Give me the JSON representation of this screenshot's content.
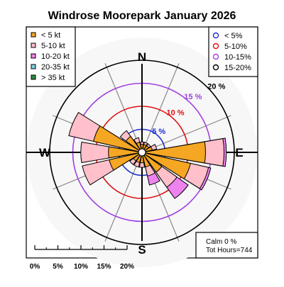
{
  "chart_data": {
    "type": "windrose",
    "title": "Windrose  Moorepark January 2026",
    "compass": {
      "north": "N",
      "south": "S",
      "east": "E",
      "west": "W"
    },
    "speed_legend": [
      {
        "label": "< 5  kt",
        "color": "#f5a623"
      },
      {
        "label": "5-10 kt",
        "color": "#ffc0cb"
      },
      {
        "label": "10-20 kt",
        "color": "#ee82ee"
      },
      {
        "label": "20-35 kt",
        "color": "#7fd0e0"
      },
      {
        "label": "> 35 kt",
        "color": "#2e8b3e"
      }
    ],
    "ring_legend": [
      {
        "label": "< 5%",
        "color": "#1f2fd0"
      },
      {
        "label": "5-10%",
        "color": "#e01010"
      },
      {
        "label": "10-15%",
        "color": "#a040e0"
      },
      {
        "label": "15-20%",
        "color": "#000000"
      }
    ],
    "rings": [
      {
        "pct": 5,
        "label": "5 %",
        "color": "#1f2fd0"
      },
      {
        "pct": 10,
        "label": "10 %",
        "color": "#e01010"
      },
      {
        "pct": 15,
        "label": "15 %",
        "color": "#a040e0"
      },
      {
        "pct": 20,
        "label": "20 %",
        "color": "#000000"
      }
    ],
    "sector_width_deg": 22.5,
    "sectors": [
      {
        "direction": "N",
        "bands": [
          1.0,
          0.5,
          0.0,
          0,
          0
        ]
      },
      {
        "direction": "NNE",
        "bands": [
          1.0,
          0.5,
          0.0,
          0,
          0
        ]
      },
      {
        "direction": "NE",
        "bands": [
          1.0,
          0.5,
          0.0,
          0,
          0
        ]
      },
      {
        "direction": "ENE",
        "bands": [
          1.5,
          1.0,
          0.0,
          0,
          0
        ]
      },
      {
        "direction": "E",
        "bands": [
          13.0,
          4.0,
          0.5,
          0,
          0
        ]
      },
      {
        "direction": "ESE",
        "bands": [
          10.0,
          4.0,
          0.5,
          0,
          0
        ]
      },
      {
        "direction": "SE",
        "bands": [
          4.5,
          4.0,
          3.0,
          0,
          0
        ]
      },
      {
        "direction": "SSE",
        "bands": [
          2.5,
          2.0,
          2.0,
          0,
          0
        ]
      },
      {
        "direction": "S",
        "bands": [
          1.5,
          1.0,
          0.0,
          0,
          0
        ]
      },
      {
        "direction": "SSW",
        "bands": [
          1.5,
          1.0,
          0.0,
          0,
          0
        ]
      },
      {
        "direction": "SW",
        "bands": [
          1.5,
          1.0,
          0.0,
          0,
          0
        ]
      },
      {
        "direction": "WSW",
        "bands": [
          6.5,
          6.0,
          0.0,
          0,
          0
        ]
      },
      {
        "direction": "W",
        "bands": [
          6.5,
          6.0,
          0.0,
          0,
          0
        ]
      },
      {
        "direction": "WNW",
        "bands": [
          10.0,
          5.5,
          0.0,
          0,
          0
        ]
      },
      {
        "direction": "NW",
        "bands": [
          3.5,
          1.5,
          0.0,
          0,
          0
        ]
      },
      {
        "direction": "NNW",
        "bands": [
          1.5,
          1.0,
          0.0,
          0,
          0
        ]
      }
    ],
    "scale_ticks": [
      "0%",
      "5%",
      "10%",
      "15%",
      "20%"
    ],
    "calm_label": "Calm 0 %",
    "hours_label": "Tot Hours=744"
  }
}
